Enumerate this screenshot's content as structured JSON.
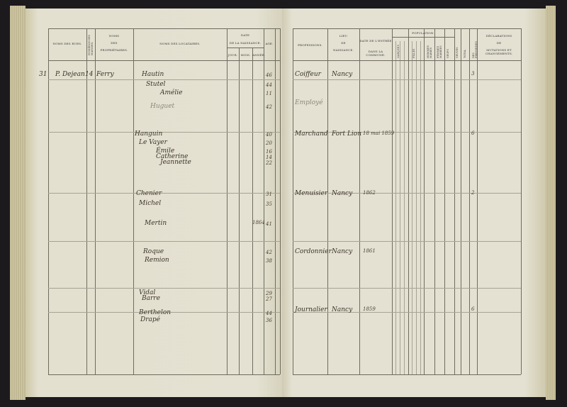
{
  "left_page": {
    "headers": {
      "streets": "Noms des rues.",
      "house_numbers": "Numéros des maisons.",
      "owners_1": "Noms",
      "owners_2": "des",
      "owners_3": "propriétaires.",
      "tenants": "Noms des locataires.",
      "birth_date": "Date",
      "birth_date_sub": "de la naissance.",
      "day": "Jour.",
      "month": "Mois.",
      "year": "Année.",
      "age": "Age."
    },
    "rows": [
      {
        "margin": "31",
        "street": "P. Dejean",
        "house": "14",
        "owner": "Ferry",
        "tenant": "Hautin",
        "age": "46"
      },
      {
        "tenant": "Stutel",
        "age": "44"
      },
      {
        "tenant": "Amélie",
        "age": "11"
      },
      {
        "tenant": "Huguet",
        "age": "42",
        "faint": true
      },
      {
        "tenant": "Hanguin",
        "age": "40"
      },
      {
        "tenant": "Le Vayer",
        "age": "20"
      },
      {
        "tenant": "Émile",
        "age": "16"
      },
      {
        "tenant": "Catherine",
        "age": "14"
      },
      {
        "tenant": "Jeannette",
        "age": "22"
      },
      {
        "tenant": "Chenier",
        "age": "31"
      },
      {
        "tenant": "Michel",
        "age": "35"
      },
      {
        "tenant": "Mertin",
        "year": "1864",
        "age": "41"
      },
      {
        "tenant": "Roque",
        "age": "42"
      },
      {
        "tenant": "Remion",
        "age": "38"
      },
      {
        "tenant": "Vidal",
        "age": "29"
      },
      {
        "tenant": "Barre",
        "age": "27"
      },
      {
        "tenant": "Berthelon",
        "age": "44"
      },
      {
        "tenant": "Drapé",
        "age": "36"
      }
    ]
  },
  "right_page": {
    "headers": {
      "professions": "Professions.",
      "birthplace_1": "Lieu",
      "birthplace_2": "de",
      "birthplace_3": "naissance.",
      "entry_date_1": "Date de l'entrée",
      "entry_date_2": "dans la commune.",
      "population": "Population.",
      "boys": "Garçons",
      "girls": "Filles",
      "married_men": "Hommes mariés",
      "married_women": "Femmes mariées",
      "widowers": "Veufs",
      "widows": "Veuves",
      "total": "Total",
      "totals_2": "des personnes",
      "declarations_1": "Déclarations",
      "declarations_2": "de",
      "declarations_3": "mutations et changements."
    },
    "rows": [
      {
        "profession": "Coiffeur",
        "birthplace": "Nancy",
        "count": "3"
      },
      {
        "profession": "Employé",
        "faint": true
      },
      {
        "profession": "Marchand",
        "birthplace": "Fort Lion",
        "entry": "18 mai 1859",
        "count": "6"
      },
      {
        "profession": "Menuisier",
        "birthplace": "Nancy",
        "entry": "1862",
        "count": "2"
      },
      {
        "profession": "Cordonnier",
        "birthplace": "Nancy",
        "entry": "1861"
      },
      {
        "profession": "Journalier",
        "birthplace": "Nancy",
        "entry": "1859",
        "count": "6"
      }
    ]
  }
}
